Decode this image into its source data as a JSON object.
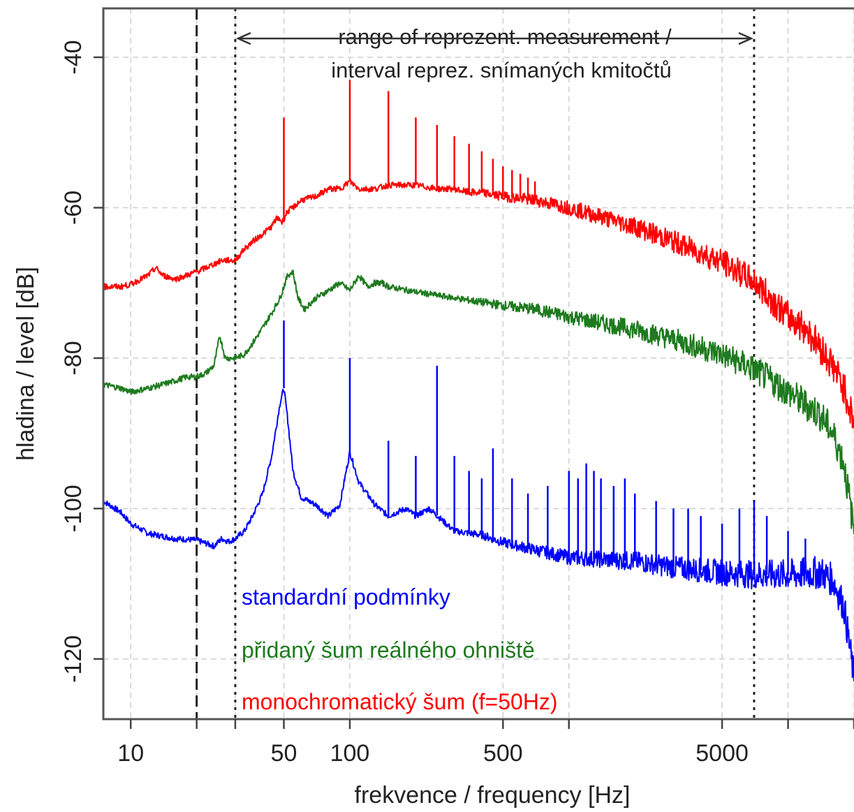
{
  "chart_data": {
    "type": "line",
    "title": "",
    "xlabel": "frekvence / frequency [Hz]",
    "ylabel": "hladina / level [dB]",
    "x_scale": "log",
    "xlim": [
      7.5,
      20000
    ],
    "ylim": [
      -128,
      -33.5
    ],
    "x_ticks": [
      10,
      50,
      100,
      500,
      5000
    ],
    "x_tick_labels": [
      "10",
      "50",
      "100",
      "500",
      "5000"
    ],
    "x_minor_ticks": [
      20,
      30,
      1000,
      10000,
      20000
    ],
    "y_ticks": [
      -40,
      -60,
      -80,
      -100,
      -120
    ],
    "y_tick_labels": [
      "-40",
      "-60",
      "-80",
      "-100",
      "-120"
    ],
    "grid": true,
    "vertical_markers": [
      {
        "x": 20,
        "style": "dashed"
      },
      {
        "x": 30,
        "style": "dotted"
      },
      {
        "x": 7000,
        "style": "dotted"
      }
    ],
    "annotation": {
      "lines": [
        "range of reprezent. measurement /",
        "interval reprez. snímaných kmitočtů"
      ],
      "arrow_from": 30,
      "arrow_to": 7000,
      "arrow_y": -37.5
    },
    "legend_position": "bottom-left",
    "series": [
      {
        "name": "standardní podmínky",
        "color": "#0000ff",
        "x": [
          7.5,
          9,
          10,
          12,
          14,
          16,
          20,
          24,
          26,
          28,
          30,
          33,
          36,
          40,
          44,
          48,
          50,
          52,
          55,
          60,
          70,
          80,
          90,
          100,
          110,
          130,
          150,
          180,
          200,
          230,
          300,
          400,
          500,
          700,
          1000,
          2000,
          3000,
          5000,
          7000,
          10000,
          14000,
          16000,
          18000,
          20000
        ],
        "y": [
          -99,
          -100.5,
          -102,
          -103.3,
          -103.7,
          -104,
          -104.2,
          -105,
          -104,
          -104.4,
          -104,
          -103,
          -101,
          -98,
          -93,
          -86,
          -84,
          -88,
          -95,
          -98.5,
          -99.5,
          -101,
          -99.5,
          -92.5,
          -96.5,
          -99.5,
          -101,
          -100,
          -101,
          -100,
          -103,
          -103.5,
          -104.5,
          -105.5,
          -106.5,
          -107,
          -107.8,
          -108.5,
          -108.8,
          -108.8,
          -108.5,
          -109.5,
          -113,
          -122.5
        ],
        "peaks": [
          {
            "x": 50,
            "y": -75
          },
          {
            "x": 100,
            "y": -80
          },
          {
            "x": 150,
            "y": -91
          },
          {
            "x": 200,
            "y": -93
          },
          {
            "x": 250,
            "y": -81
          },
          {
            "x": 300,
            "y": -93
          },
          {
            "x": 350,
            "y": -95
          },
          {
            "x": 400,
            "y": -96
          },
          {
            "x": 450,
            "y": -92
          },
          {
            "x": 550,
            "y": -96
          },
          {
            "x": 650,
            "y": -98
          },
          {
            "x": 800,
            "y": -97
          },
          {
            "x": 1000,
            "y": -95
          },
          {
            "x": 1100,
            "y": -96
          },
          {
            "x": 1200,
            "y": -94
          },
          {
            "x": 1300,
            "y": -95
          },
          {
            "x": 1400,
            "y": -96
          },
          {
            "x": 1600,
            "y": -97
          },
          {
            "x": 1800,
            "y": -96
          },
          {
            "x": 2000,
            "y": -98
          },
          {
            "x": 2500,
            "y": -99
          },
          {
            "x": 3000,
            "y": -100
          },
          {
            "x": 3500,
            "y": -100
          },
          {
            "x": 4000,
            "y": -101
          },
          {
            "x": 5000,
            "y": -102
          },
          {
            "x": 6000,
            "y": -100
          },
          {
            "x": 7000,
            "y": -99
          },
          {
            "x": 8000,
            "y": -101
          },
          {
            "x": 10000,
            "y": -103
          },
          {
            "x": 12000,
            "y": -104
          }
        ]
      },
      {
        "name": "přidaný šum reálného ohniště",
        "color": "#1e7a1e",
        "x": [
          7.5,
          9,
          10,
          12,
          14,
          16,
          18,
          20,
          22,
          24,
          25.5,
          27,
          30,
          33,
          36,
          40,
          44,
          48,
          52,
          55,
          58,
          62,
          70,
          80,
          90,
          100,
          110,
          120,
          130,
          140,
          150,
          200,
          300,
          500,
          700,
          1000,
          2000,
          3000,
          5000,
          7000,
          10000,
          14000,
          16000,
          18000,
          20000
        ],
        "y": [
          -83.5,
          -84,
          -84.5,
          -84,
          -83.5,
          -83,
          -82.5,
          -82.5,
          -82,
          -81,
          -77,
          -80,
          -80,
          -79.5,
          -78,
          -76,
          -74,
          -72,
          -69,
          -68.5,
          -72,
          -73.5,
          -72,
          -71,
          -70,
          -71,
          -69,
          -70.5,
          -70,
          -70,
          -70.5,
          -71.2,
          -72,
          -73,
          -73.5,
          -74.5,
          -76.2,
          -77.5,
          -79.5,
          -81.5,
          -84.5,
          -87.5,
          -90,
          -94,
          -103
        ]
      },
      {
        "name": "monochromatický šum (f=50Hz)",
        "color": "#ff0000",
        "x": [
          7.5,
          9,
          10,
          12,
          13,
          14,
          16,
          18,
          20,
          22,
          24,
          26,
          28,
          30,
          33,
          36,
          40,
          44,
          46,
          48,
          49,
          52,
          55,
          60,
          70,
          80,
          90,
          100,
          110,
          130,
          150,
          200,
          250,
          300,
          350,
          400,
          500,
          700,
          1000,
          2000,
          3000,
          5000,
          7000,
          10000,
          12000,
          14000,
          16000,
          18000,
          20000
        ],
        "y": [
          -70.5,
          -70.5,
          -70.2,
          -69,
          -68,
          -69,
          -69.5,
          -69,
          -68.5,
          -68,
          -67.5,
          -67,
          -67,
          -67,
          -65.5,
          -64.5,
          -63.5,
          -62.5,
          -61.5,
          -61.5,
          -62,
          -60.5,
          -60,
          -59,
          -58.5,
          -57.5,
          -57.5,
          -56.5,
          -57.5,
          -57.5,
          -57,
          -57,
          -57.5,
          -57.5,
          -58,
          -58,
          -58.5,
          -59,
          -60,
          -62.5,
          -64.5,
          -67.2,
          -69.8,
          -74.5,
          -76,
          -78.5,
          -81,
          -84,
          -88.5
        ],
        "peaks": [
          {
            "x": 50,
            "y": -48
          },
          {
            "x": 100,
            "y": -43
          },
          {
            "x": 150,
            "y": -44.5
          },
          {
            "x": 200,
            "y": -48
          },
          {
            "x": 250,
            "y": -49
          },
          {
            "x": 300,
            "y": -50.5
          },
          {
            "x": 350,
            "y": -51.5
          },
          {
            "x": 400,
            "y": -52.5
          },
          {
            "x": 450,
            "y": -53.5
          },
          {
            "x": 500,
            "y": -54.5
          },
          {
            "x": 550,
            "y": -55
          },
          {
            "x": 600,
            "y": -55.5
          },
          {
            "x": 650,
            "y": -56
          },
          {
            "x": 700,
            "y": -56.5
          }
        ]
      }
    ]
  }
}
